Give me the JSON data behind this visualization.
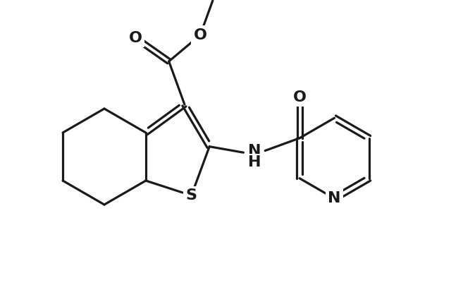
{
  "bg_color": "#ffffff",
  "line_color": "#1a1a1a",
  "lw": 2.3,
  "figsize": [
    6.4,
    4.28
  ],
  "dpi": 100,
  "atoms": {
    "S_label": "S",
    "N_label": "N",
    "O_label": "O",
    "NH_label": "NH",
    "H_label": "H"
  },
  "font_size": 16
}
